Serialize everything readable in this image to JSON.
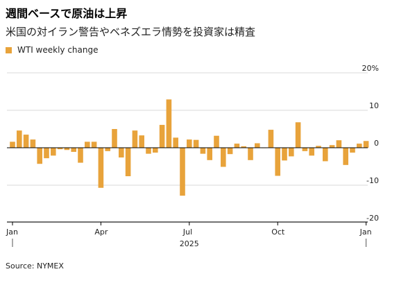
{
  "chart_data": {
    "type": "bar",
    "title": "週間ベースで原油は上昇",
    "subtitle": "米国の対イラン警告やベネズエラ情勢を投資家は精査",
    "legend": [
      "WTI weekly change"
    ],
    "series": [
      {
        "name": "WTI weekly change",
        "color": "#e8a33b",
        "values": [
          1.6,
          4.6,
          3.5,
          2.2,
          -4.3,
          -2.8,
          -2.1,
          -0.4,
          -0.6,
          -1.1,
          -4.0,
          1.6,
          1.6,
          -10.7,
          -0.9,
          5.0,
          -2.6,
          -7.6,
          4.6,
          3.3,
          -1.6,
          -1.3,
          6.1,
          12.9,
          2.7,
          -12.8,
          2.2,
          2.1,
          -1.6,
          -3.3,
          3.2,
          -5.1,
          -1.7,
          1.1,
          0.4,
          -3.3,
          1.2,
          -0.1,
          4.8,
          -7.5,
          -3.4,
          -2.3,
          6.8,
          -0.9,
          -2.1,
          0.5,
          -3.6,
          0.7,
          2.0,
          -4.6,
          -1.3,
          1.1,
          1.8
        ]
      }
    ],
    "ylim": [
      -20,
      20
    ],
    "y_ticks": [
      {
        "value": 20,
        "label": "20%"
      },
      {
        "value": 10,
        "label": "10"
      },
      {
        "value": 0,
        "label": "0"
      },
      {
        "value": -10,
        "label": "-10"
      },
      {
        "value": -20,
        "label": "-20"
      }
    ],
    "x_ticks": [
      {
        "index": 0,
        "label": "Jan"
      },
      {
        "index": 13,
        "label": "Apr"
      },
      {
        "index": 26,
        "label": "Jul"
      },
      {
        "index": 39,
        "label": "Oct"
      },
      {
        "index": 52,
        "label": "Jan"
      }
    ],
    "x_year_label": "2025",
    "grid": true
  },
  "source": "Source: NYMEX"
}
